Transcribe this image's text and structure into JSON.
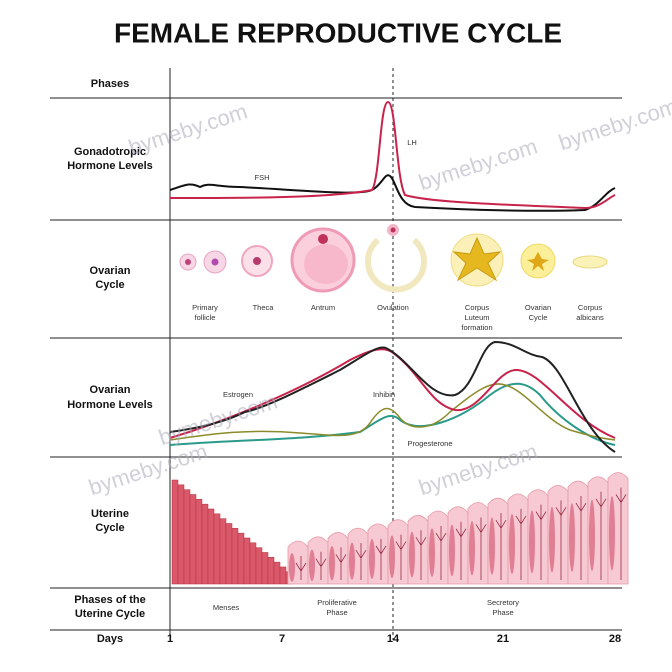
{
  "title": "FEMALE REPRODUCTIVE CYCLE",
  "rows": [
    {
      "lines": [
        "Phases"
      ]
    },
    {
      "lines": [
        "Gonadotropic",
        "Hormone Levels"
      ]
    },
    {
      "lines": [
        "Ovarian",
        "Cycle"
      ]
    },
    {
      "lines": [
        "Ovarian",
        "Hormone Levels"
      ]
    },
    {
      "lines": [
        "Uterine",
        "Cycle"
      ]
    },
    {
      "lines": [
        "Phases of the",
        "Uterine Cycle"
      ]
    },
    {
      "lines": [
        "Days"
      ]
    }
  ],
  "gonadotropic_labels": [
    "FSH",
    "LH"
  ],
  "ovarian_stages": [
    {
      "lines": [
        "Primary",
        "follicle"
      ]
    },
    {
      "lines": [
        "Theca"
      ]
    },
    {
      "lines": [
        "Antrum"
      ]
    },
    {
      "lines": [
        "Ovulation"
      ]
    },
    {
      "lines": [
        "Corpus",
        "Luteum",
        "formation"
      ]
    },
    {
      "lines": [
        "Ovarian",
        "Cycle"
      ]
    },
    {
      "lines": [
        "Corpus",
        "albicans"
      ]
    }
  ],
  "ovarian_hormone_labels": [
    "Estrogen",
    "Inhibin",
    "Progesterone"
  ],
  "uterine_phases": [
    {
      "lines": [
        "Menses"
      ]
    },
    {
      "lines": [
        "Proliferative",
        "Phase"
      ]
    },
    {
      "lines": [
        "Secretory",
        "Phase"
      ]
    }
  ],
  "days": [
    "1",
    "7",
    "14",
    "21",
    "28"
  ],
  "watermarks": [
    "bymeby.com",
    "bymeby.com",
    "bymeby.com",
    "bymeby.com",
    "bymeby.com",
    "bymeby.com"
  ]
}
